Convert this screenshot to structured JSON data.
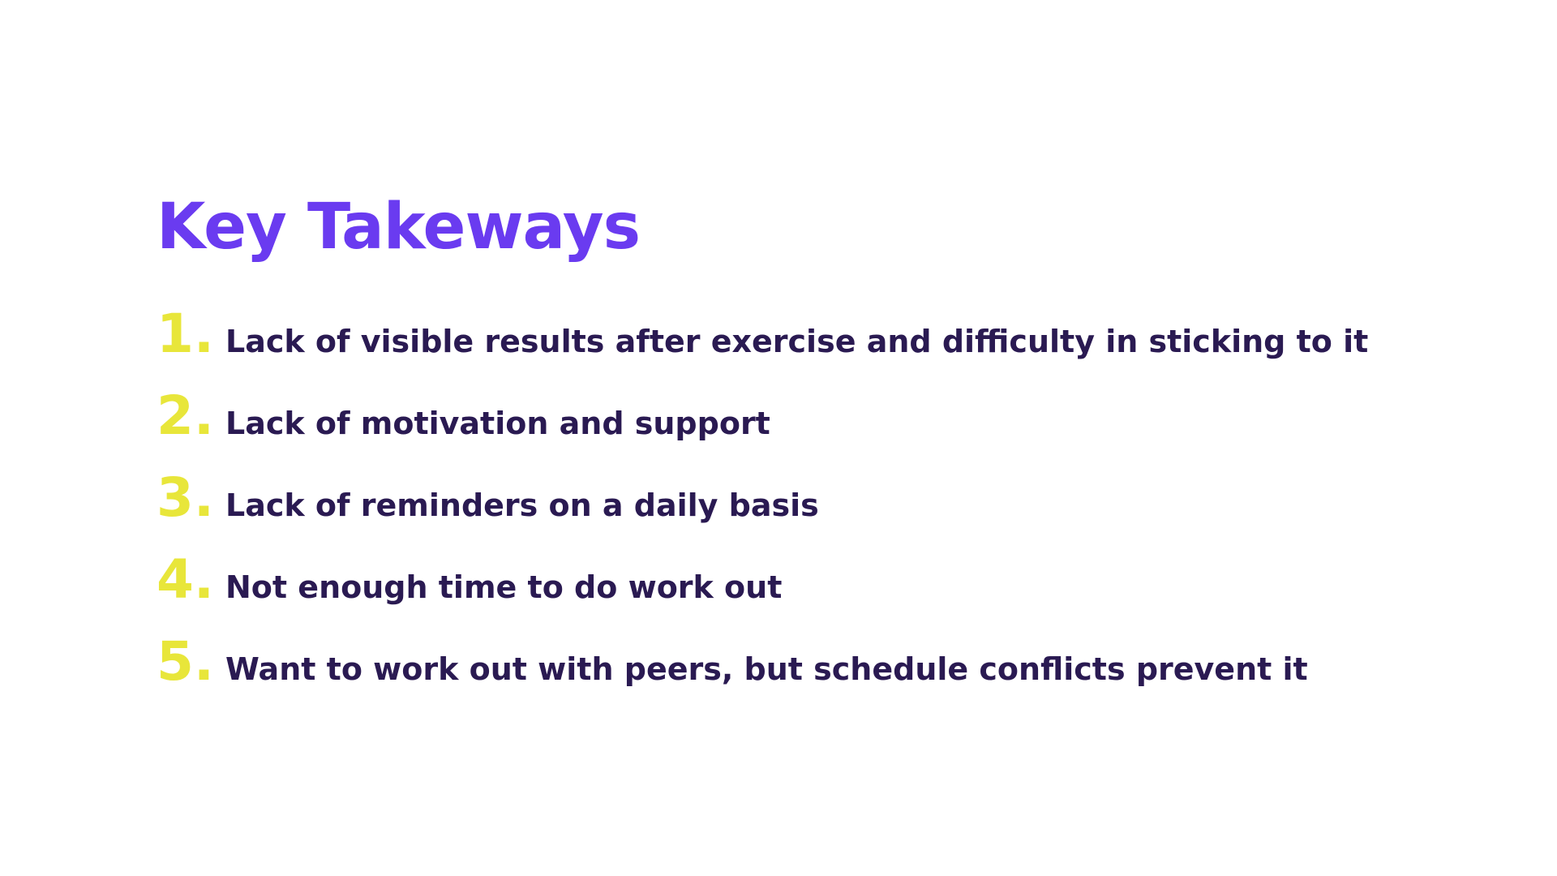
{
  "slide": {
    "title": "Key Takeways",
    "takeaways": [
      {
        "number": "1.",
        "text": "Lack of visible results after exercise and difficulty in sticking to it"
      },
      {
        "number": "2.",
        "text": "Lack of motivation and support"
      },
      {
        "number": "3.",
        "text": "Lack of reminders on a daily basis"
      },
      {
        "number": "4.",
        "text": "Not enough time to do work out"
      },
      {
        "number": "5.",
        "text": "Want to work out with peers, but schedule conflicts prevent it"
      }
    ]
  },
  "colors": {
    "title": "#6a3bf0",
    "number": "#e8e63a",
    "text": "#2a1a52",
    "background": "#ffffff"
  }
}
